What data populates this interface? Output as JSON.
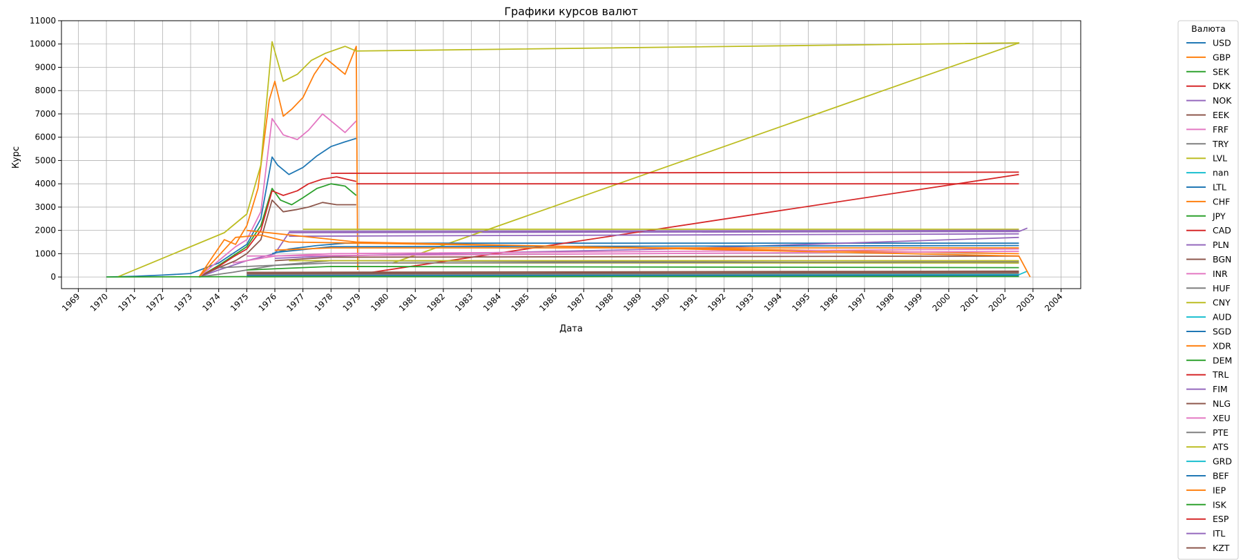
{
  "chart_data": {
    "type": "line",
    "title": "Графики курсов валют",
    "xlabel": "Дата",
    "ylabel": "Курс",
    "xlim": [
      1968.4,
      2004.7
    ],
    "ylim": [
      -500,
      11000
    ],
    "x_ticks": [
      1969,
      1970,
      1971,
      1972,
      1973,
      1974,
      1975,
      1976,
      1977,
      1978,
      1979,
      1980,
      1981,
      1982,
      1983,
      1984,
      1985,
      1986,
      1987,
      1988,
      1989,
      1990,
      1991,
      1992,
      1993,
      1994,
      1995,
      1996,
      1997,
      1998,
      1999,
      2000,
      2001,
      2002,
      2003,
      2004
    ],
    "y_ticks": [
      0,
      1000,
      2000,
      3000,
      4000,
      5000,
      6000,
      7000,
      8000,
      9000,
      10000,
      11000
    ],
    "grid": true,
    "legend": {
      "title": "Валюта",
      "placement": "outside-right"
    },
    "series": [
      {
        "name": "USD",
        "color": "#1f77b4",
        "points": [
          [
            1970,
            0
          ],
          [
            1971,
            30
          ],
          [
            1972,
            80
          ],
          [
            1973,
            150
          ],
          [
            1974,
            600
          ],
          [
            1974.5,
            1000
          ],
          [
            1975,
            1400
          ],
          [
            1975.5,
            2500
          ],
          [
            1975.9,
            5150
          ],
          [
            1976.1,
            4800
          ],
          [
            1976.5,
            4400
          ],
          [
            1977,
            4700
          ],
          [
            1977.5,
            5200
          ],
          [
            1978,
            5600
          ],
          [
            1978.5,
            5800
          ],
          [
            1978.9,
            5950
          ]
        ]
      },
      {
        "name": "GBP",
        "color": "#ff7f0e",
        "points": [
          [
            1973.3,
            0
          ],
          [
            1973.8,
            900
          ],
          [
            1974.2,
            1600
          ],
          [
            1974.6,
            1400
          ],
          [
            1975,
            2200
          ],
          [
            1975.4,
            3800
          ],
          [
            1975.8,
            7600
          ],
          [
            1976,
            8400
          ],
          [
            1976.3,
            6900
          ],
          [
            1976.6,
            7200
          ],
          [
            1977,
            7700
          ],
          [
            1977.4,
            8700
          ],
          [
            1977.8,
            9400
          ],
          [
            1978.2,
            9000
          ],
          [
            1978.5,
            8700
          ],
          [
            1978.9,
            9900
          ],
          [
            1978.95,
            300
          ]
        ]
      },
      {
        "name": "SEK",
        "color": "#2ca02c",
        "points": [
          [
            1973.3,
            0
          ],
          [
            1974,
            500
          ],
          [
            1974.5,
            900
          ],
          [
            1975,
            1300
          ],
          [
            1975.5,
            2200
          ],
          [
            1975.9,
            3800
          ],
          [
            1976.2,
            3300
          ],
          [
            1976.6,
            3100
          ],
          [
            1977,
            3400
          ],
          [
            1977.5,
            3800
          ],
          [
            1978,
            4000
          ],
          [
            1978.5,
            3900
          ],
          [
            1978.9,
            3500
          ]
        ]
      },
      {
        "name": "DKK",
        "color": "#d62728",
        "points": [
          [
            1973.3,
            0
          ],
          [
            1974,
            450
          ],
          [
            1974.5,
            850
          ],
          [
            1975,
            1200
          ],
          [
            1975.5,
            2000
          ],
          [
            1975.9,
            3700
          ],
          [
            1976.3,
            3500
          ],
          [
            1976.8,
            3700
          ],
          [
            1977.2,
            4000
          ],
          [
            1977.7,
            4200
          ],
          [
            1978.2,
            4300
          ],
          [
            1978.9,
            4100
          ]
        ]
      },
      {
        "name": "NOK",
        "color": "#9467bd",
        "points": [
          [
            1973.3,
            0
          ],
          [
            1974,
            300
          ],
          [
            1975,
            700
          ],
          [
            1976,
            1000
          ],
          [
            1976.5,
            1900
          ],
          [
            2002.5,
            1950
          ],
          [
            2002.8,
            2100
          ]
        ]
      },
      {
        "name": "EEK",
        "color": "#8c564b",
        "points": [
          [
            1973.3,
            0
          ],
          [
            1974,
            400
          ],
          [
            1974.6,
            700
          ],
          [
            1975,
            1000
          ],
          [
            1975.5,
            1600
          ],
          [
            1975.9,
            3300
          ],
          [
            1976.3,
            2800
          ],
          [
            1976.8,
            2900
          ],
          [
            1977.2,
            3000
          ],
          [
            1977.7,
            3200
          ],
          [
            1978.2,
            3100
          ],
          [
            1978.9,
            3100
          ]
        ]
      },
      {
        "name": "FRF",
        "color": "#e377c2",
        "points": [
          [
            1973.3,
            0
          ],
          [
            1974,
            700
          ],
          [
            1974.6,
            1300
          ],
          [
            1975,
            1600
          ],
          [
            1975.5,
            2800
          ],
          [
            1975.9,
            6800
          ],
          [
            1976.3,
            6100
          ],
          [
            1976.8,
            5900
          ],
          [
            1977.2,
            6300
          ],
          [
            1977.7,
            7000
          ],
          [
            1978.2,
            6500
          ],
          [
            1978.5,
            6200
          ],
          [
            1978.9,
            6700
          ]
        ]
      },
      {
        "name": "TRY",
        "color": "#7f7f7f",
        "points": [
          [
            1973.3,
            0
          ],
          [
            1974.5,
            200
          ],
          [
            1976,
            500
          ],
          [
            1978,
            700
          ],
          [
            2002.5,
            600
          ]
        ]
      },
      {
        "name": "LVL",
        "color": "#bcbd22",
        "points": [
          [
            1970.4,
            0
          ],
          [
            1974.2,
            1900
          ],
          [
            1975,
            2700
          ],
          [
            1975.5,
            4800
          ],
          [
            1975.9,
            10100
          ],
          [
            1976.3,
            8400
          ],
          [
            1976.8,
            8700
          ],
          [
            1977.3,
            9300
          ],
          [
            1977.8,
            9600
          ],
          [
            1978.5,
            9900
          ],
          [
            1978.9,
            9700
          ],
          [
            2002.5,
            10050
          ],
          [
            1980.2,
            600
          ],
          [
            2002.5,
            600
          ]
        ]
      },
      {
        "name": "nan",
        "color": "#17becf",
        "points": [
          [
            1975.7,
            50
          ],
          [
            1978.9,
            80
          ],
          [
            2002.5,
            100
          ],
          [
            2002.8,
            250
          ]
        ]
      },
      {
        "name": "LTL",
        "color": "#1f77b4",
        "points": [
          [
            1975.9,
            1000
          ],
          [
            1976.5,
            1200
          ],
          [
            1977.5,
            1350
          ],
          [
            1978.5,
            1450
          ],
          [
            2002.5,
            1450
          ]
        ]
      },
      {
        "name": "CHF",
        "color": "#ff7f0e",
        "points": [
          [
            1973.3,
            0
          ],
          [
            1974.6,
            1700
          ],
          [
            1975.5,
            1800
          ],
          [
            1976.5,
            1500
          ],
          [
            2002.5,
            1000
          ]
        ]
      },
      {
        "name": "JPY",
        "color": "#2ca02c",
        "points": [
          [
            1970,
            0
          ],
          [
            1976,
            20
          ],
          [
            1980,
            30
          ],
          [
            2002.5,
            40
          ]
        ]
      },
      {
        "name": "CAD",
        "color": "#d62728",
        "points": [
          [
            1978.9,
            100
          ],
          [
            2002.5,
            4400
          ]
        ]
      },
      {
        "name": "PLN",
        "color": "#9467bd",
        "points": [
          [
            1976,
            800
          ],
          [
            1978,
            900
          ],
          [
            1990,
            1200
          ],
          [
            2002.5,
            1700
          ]
        ]
      },
      {
        "name": "BGN",
        "color": "#8c564b",
        "points": [
          [
            1976,
            700
          ],
          [
            1978,
            850
          ],
          [
            2002.5,
            900
          ]
        ]
      },
      {
        "name": "INR",
        "color": "#e377c2",
        "points": [
          [
            1974.5,
            600
          ],
          [
            1976,
            900
          ],
          [
            1978,
            1000
          ],
          [
            2002.5,
            1200
          ]
        ]
      },
      {
        "name": "HUF",
        "color": "#7f7f7f",
        "points": [
          [
            1974,
            400
          ],
          [
            1978,
            600
          ],
          [
            2002.5,
            650
          ]
        ]
      },
      {
        "name": "CNY",
        "color": "#bcbd22",
        "points": [
          [
            1977,
            2050
          ],
          [
            2002.5,
            2050
          ]
        ]
      },
      {
        "name": "AUD",
        "color": "#17becf",
        "points": [
          [
            1975,
            100
          ],
          [
            1978.9,
            150
          ],
          [
            2002.5,
            150
          ]
        ]
      },
      {
        "name": "SGD",
        "color": "#1f77b4",
        "points": [
          [
            1976,
            1050
          ],
          [
            1978,
            1300
          ],
          [
            2002.5,
            1350
          ]
        ]
      },
      {
        "name": "XDR",
        "color": "#ff7f0e",
        "points": [
          [
            1976,
            1150
          ],
          [
            1978,
            1250
          ],
          [
            2002.5,
            1250
          ]
        ]
      },
      {
        "name": "DEM",
        "color": "#2ca02c",
        "points": [
          [
            1975,
            300
          ],
          [
            1978,
            450
          ],
          [
            2002.5,
            400
          ]
        ]
      },
      {
        "name": "TRL",
        "color": "#d62728",
        "points": [
          [
            1978.9,
            4000
          ],
          [
            2002.5,
            4000
          ]
        ]
      },
      {
        "name": "FIM",
        "color": "#9467bd",
        "points": [
          [
            1976.5,
            1750
          ],
          [
            2002.5,
            1850
          ]
        ]
      },
      {
        "name": "NLG",
        "color": "#8c564b",
        "points": [
          [
            1975,
            200
          ],
          [
            2002.5,
            250
          ]
        ]
      },
      {
        "name": "XEU",
        "color": "#e377c2",
        "points": [
          [
            1975,
            900
          ],
          [
            2002.5,
            1100
          ]
        ]
      },
      {
        "name": "PTE",
        "color": "#7f7f7f",
        "points": [
          [
            1975,
            100
          ],
          [
            2002.5,
            150
          ]
        ]
      },
      {
        "name": "ATS",
        "color": "#bcbd22",
        "points": [
          [
            1976.5,
            700
          ],
          [
            2002.5,
            700
          ]
        ]
      },
      {
        "name": "GRD",
        "color": "#17becf",
        "points": [
          [
            1975,
            30
          ],
          [
            2002.5,
            60
          ]
        ]
      },
      {
        "name": "BEF",
        "color": "#1f77b4",
        "points": [
          [
            1975,
            50
          ],
          [
            2002.5,
            70
          ]
        ]
      },
      {
        "name": "IEP",
        "color": "#ff7f0e",
        "points": [
          [
            1975,
            2000
          ],
          [
            1978.9,
            1500
          ],
          [
            2002.5,
            900
          ],
          [
            2002.9,
            0
          ]
        ]
      },
      {
        "name": "ISK",
        "color": "#2ca02c",
        "points": [
          [
            1975,
            10
          ],
          [
            2002.5,
            20
          ]
        ]
      },
      {
        "name": "ESP",
        "color": "#d62728",
        "points": [
          [
            1978,
            4450
          ],
          [
            2002.5,
            4500
          ]
        ]
      },
      {
        "name": "ITL",
        "color": "#9467bd",
        "points": [
          [
            1976.5,
            1950
          ],
          [
            2002.5,
            2000
          ]
        ]
      },
      {
        "name": "KZT",
        "color": "#8c564b",
        "points": [
          [
            1975,
            150
          ],
          [
            2002.5,
            200
          ]
        ]
      }
    ]
  }
}
